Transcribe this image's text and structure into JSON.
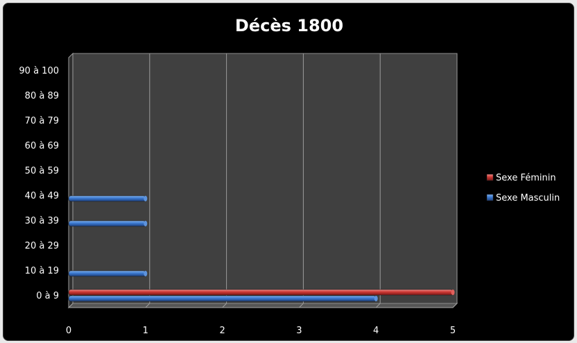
{
  "chart_data": {
    "type": "bar",
    "orientation": "horizontal",
    "title": "Décès 1800",
    "categories": [
      "0 à 9",
      "10 à 19",
      "20 à 29",
      "30 à 39",
      "40 à 49",
      "50 à 59",
      "60 à 69",
      "70 à 79",
      "80 à 89",
      "90 à 100"
    ],
    "series": [
      {
        "name": "Sexe Masculin",
        "color": "#2f6bbf",
        "values": [
          4,
          1,
          0,
          1,
          1,
          0,
          0,
          0,
          0,
          0
        ]
      },
      {
        "name": "Sexe Féminin",
        "color": "#c8312f",
        "values": [
          5,
          0,
          0,
          0,
          0,
          0,
          0,
          0,
          0,
          0
        ]
      }
    ],
    "xlim": [
      0,
      5
    ],
    "x_ticks": [
      "0",
      "1",
      "2",
      "3",
      "4",
      "5"
    ],
    "xlabel": "",
    "ylabel": "",
    "grid": "vertical",
    "legend": "right",
    "style": "3d-cylinder",
    "plot_background": "#404040",
    "background": "#000000"
  }
}
